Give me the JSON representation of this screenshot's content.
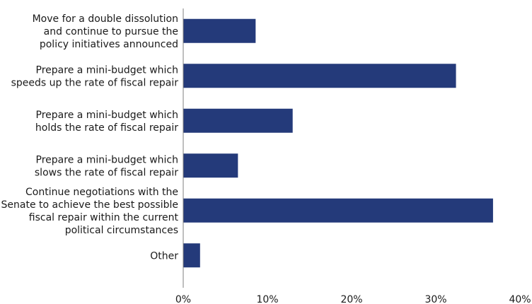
{
  "chart_data": {
    "type": "bar",
    "orientation": "horizontal",
    "title": "",
    "xlabel": "",
    "ylabel": "",
    "categories": [
      "Move for a double dissolution and continue to pursue the policy initiatives announced",
      "Prepare a mini-budget which speeds up the rate of fiscal repair",
      "Prepare a mini-budget which holds the rate of fiscal repair",
      "Prepare a mini-budget which slows the rate of fiscal repair",
      "Continue negotiations with the Senate to achieve the best possible fiscal repair within the current political circumstances",
      "Other"
    ],
    "category_label_lines": [
      [
        "Move for a double dissolution",
        "and continue to pursue the",
        "policy initiatives announced"
      ],
      [
        "Prepare a mini-budget which",
        "speeds up the rate of fiscal repair"
      ],
      [
        "Prepare a mini-budget which",
        "holds the rate of fiscal repair"
      ],
      [
        "Prepare a mini-budget which",
        "slows the rate of fiscal repair"
      ],
      [
        "Continue negotiations with the",
        "Senate to achieve the best possible",
        "fiscal repair within the current",
        "political circumstances"
      ],
      [
        "Other"
      ]
    ],
    "values": [
      8.6,
      32.4,
      13.0,
      6.5,
      36.8,
      2.0
    ],
    "unit": "%",
    "xlim": [
      0,
      40
    ],
    "xticks": [
      0,
      10,
      20,
      30,
      40
    ],
    "xtick_labels": [
      "0%",
      "10%",
      "20%",
      "30%",
      "40%"
    ],
    "grid": false,
    "legend": "none",
    "bar_color": "#243a7a",
    "axis_color": "#7f7f7f",
    "text_color": "#1a1a1a"
  }
}
